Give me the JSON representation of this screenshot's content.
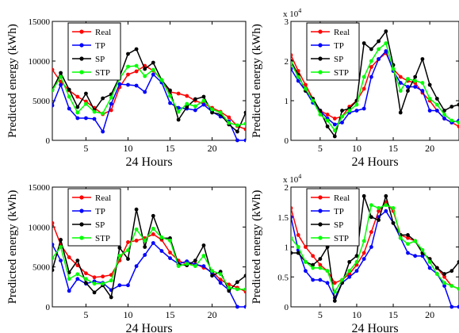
{
  "chart_data": [
    {
      "type": "line",
      "ylabel": "Predicted energy (kWh)",
      "xlabel": "24 Hours",
      "exponent_label": "",
      "xlim": [
        1,
        24
      ],
      "ylim": [
        0,
        15000
      ],
      "xticks": [
        5,
        10,
        15,
        20
      ],
      "yticks": [
        0,
        5000,
        10000,
        15000
      ],
      "ytick_labels": [
        "0",
        "5000",
        "10000",
        "15000"
      ],
      "legend": "top-left",
      "series": [
        {
          "name": "Real",
          "color": "#ff0000",
          "values": [
            8900,
            7400,
            6300,
            5500,
            4900,
            4100,
            3300,
            3800,
            6700,
            8300,
            8700,
            9400,
            8800,
            7600,
            6100,
            5900,
            5600,
            5000,
            4600,
            4100,
            3600,
            2900,
            1800,
            1400
          ]
        },
        {
          "name": "TP",
          "color": "#0000ff",
          "values": [
            4400,
            7000,
            4000,
            2800,
            2800,
            2700,
            1100,
            4600,
            7100,
            7000,
            6900,
            6100,
            8300,
            7300,
            4700,
            4100,
            4000,
            3800,
            4500,
            3600,
            3000,
            2400,
            0,
            0
          ]
        },
        {
          "name": "SP",
          "color": "#000000",
          "values": [
            6400,
            8500,
            6400,
            4200,
            5900,
            3800,
            5300,
            5800,
            8000,
            10900,
            11500,
            9000,
            9800,
            7600,
            6300,
            2600,
            4200,
            5200,
            5500,
            3500,
            3300,
            2000,
            1100,
            3500
          ]
        },
        {
          "name": "STP",
          "color": "#00ff00",
          "values": [
            6300,
            8000,
            5500,
            3500,
            4600,
            3600,
            3400,
            5400,
            7800,
            9300,
            9400,
            8100,
            8900,
            7600,
            5600,
            3600,
            4600,
            4300,
            5000,
            3900,
            3500,
            2200,
            1900,
            2100
          ]
        }
      ]
    },
    {
      "type": "line",
      "ylabel": "Predicted energy (kWh)",
      "xlabel": "24 Hours",
      "exponent_label": "x 10^4",
      "xlim": [
        1,
        24
      ],
      "ylim": [
        0,
        30000
      ],
      "xticks": [
        5,
        10,
        15,
        20
      ],
      "yticks": [
        0,
        10000,
        20000,
        30000
      ],
      "ytick_labels": [
        "0",
        "1",
        "2",
        "3"
      ],
      "legend": "top-left",
      "series": [
        {
          "name": "Real",
          "color": "#ff0000",
          "values": [
            21500,
            17500,
            14000,
            10500,
            7500,
            6500,
            5500,
            6000,
            8500,
            10000,
            13000,
            18500,
            20500,
            22000,
            18000,
            16000,
            15000,
            14500,
            12000,
            10000,
            7500,
            5500,
            4500,
            3500
          ]
        },
        {
          "name": "TP",
          "color": "#0000ff",
          "values": [
            18000,
            15000,
            12500,
            9500,
            7500,
            5500,
            4000,
            4500,
            7000,
            7500,
            8000,
            16000,
            20500,
            22500,
            17500,
            14500,
            13500,
            13500,
            12500,
            7500,
            7500,
            5500,
            4500,
            5000
          ]
        },
        {
          "name": "SP",
          "color": "#000000",
          "values": [
            20000,
            16500,
            12500,
            10500,
            7500,
            3500,
            1000,
            7500,
            8000,
            10000,
            24500,
            23000,
            25000,
            27500,
            19000,
            7000,
            12500,
            16000,
            20500,
            14000,
            10500,
            7500,
            8500,
            9000
          ]
        },
        {
          "name": "STP",
          "color": "#00ff00",
          "values": [
            19500,
            16000,
            13000,
            10000,
            6500,
            5000,
            2500,
            6000,
            7500,
            9000,
            16000,
            20000,
            23000,
            24500,
            18000,
            12500,
            15500,
            15000,
            14500,
            10500,
            9000,
            6500,
            5000,
            4500
          ]
        }
      ]
    },
    {
      "type": "line",
      "ylabel": "Predicted energy (kWh)",
      "xlabel": "24 Hours",
      "exponent_label": "",
      "xlim": [
        1,
        24
      ],
      "ylim": [
        0,
        15000
      ],
      "xticks": [
        5,
        10,
        15,
        20
      ],
      "yticks": [
        0,
        5000,
        10000,
        15000
      ],
      "ytick_labels": [
        "0",
        "5000",
        "10000",
        "15000"
      ],
      "legend": "top-left",
      "series": [
        {
          "name": "Real",
          "color": "#ff0000",
          "values": [
            10500,
            7800,
            6200,
            5200,
            4200,
            3700,
            3800,
            4000,
            5800,
            8100,
            8300,
            8600,
            9100,
            8400,
            6800,
            5800,
            5300,
            5400,
            4900,
            4400,
            3400,
            2800,
            2400,
            1900
          ]
        },
        {
          "name": "TP",
          "color": "#0000ff",
          "values": [
            7800,
            5800,
            2000,
            3500,
            2900,
            3200,
            3000,
            2100,
            2700,
            2700,
            5100,
            6500,
            8000,
            7000,
            6100,
            5400,
            5700,
            5300,
            5100,
            4200,
            3000,
            2100,
            0,
            0
          ]
        },
        {
          "name": "SP",
          "color": "#000000",
          "values": [
            4600,
            8400,
            4300,
            5800,
            3000,
            1800,
            2700,
            1200,
            7400,
            6000,
            12200,
            7500,
            11400,
            8600,
            8600,
            5300,
            5200,
            5800,
            7700,
            3900,
            4400,
            2000,
            3100,
            3900
          ]
        },
        {
          "name": "STP",
          "color": "#00ff00",
          "values": [
            6100,
            7500,
            3500,
            4100,
            3500,
            2900,
            2900,
            3300,
            6400,
            7100,
            9700,
            8300,
            9800,
            8700,
            8300,
            5100,
            5400,
            5100,
            6400,
            4500,
            4100,
            2400,
            2200,
            2200
          ]
        }
      ]
    },
    {
      "type": "line",
      "ylabel": "Predicted energy (kWh)",
      "xlabel": "24 Hours",
      "exponent_label": "x 10^4",
      "xlim": [
        1,
        24
      ],
      "ylim": [
        0,
        20000
      ],
      "xticks": [
        5,
        10,
        15,
        20
      ],
      "yticks": [
        0,
        5000,
        10000,
        15000,
        20000
      ],
      "ytick_labels": [
        "0",
        "0.5",
        "1",
        "1.5",
        "2"
      ],
      "legend": "top-left",
      "series": [
        {
          "name": "Real",
          "color": "#ff0000",
          "values": [
            16500,
            12000,
            10000,
            8500,
            7000,
            6000,
            4000,
            4500,
            5500,
            7000,
            9000,
            12500,
            16000,
            17500,
            16000,
            12000,
            11500,
            11000,
            9000,
            8000,
            6500,
            5000,
            3500,
            3000
          ]
        },
        {
          "name": "TP",
          "color": "#0000ff",
          "values": [
            15000,
            9500,
            6000,
            4500,
            4500,
            4000,
            1500,
            4000,
            5000,
            6000,
            8000,
            10000,
            15000,
            16000,
            14000,
            11500,
            9000,
            8500,
            8500,
            6500,
            5500,
            3500,
            0,
            0
          ]
        },
        {
          "name": "SP",
          "color": "#000000",
          "values": [
            9000,
            9000,
            7500,
            7000,
            8000,
            10000,
            1000,
            4000,
            7500,
            8500,
            18500,
            15000,
            14500,
            18500,
            14000,
            12000,
            12000,
            11000,
            9000,
            8000,
            6500,
            5500,
            6000,
            7500
          ]
        },
        {
          "name": "STP",
          "color": "#00ff00",
          "values": [
            11500,
            10000,
            7500,
            6500,
            6500,
            6000,
            2500,
            4500,
            6000,
            7500,
            11000,
            17000,
            16500,
            17000,
            16500,
            11500,
            10500,
            11000,
            9500,
            7500,
            5500,
            4000,
            3500,
            3000
          ]
        }
      ]
    }
  ]
}
